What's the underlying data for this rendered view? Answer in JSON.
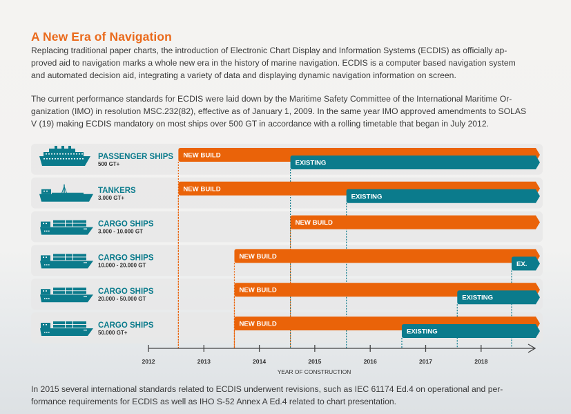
{
  "header": {
    "title": "A New Era of Navigation"
  },
  "intro": {
    "paragraph1": [
      "Replacing traditional paper charts, the introduction of Electronic Chart Display and Information Systems (ECDIS) as officially ap-",
      "proved aid to navigation marks a whole new era in the history of marine navigation. ECDIS is a computer based navigation system",
      "and automated decision aid, integrating a variety of data and displaying dynamic navigation information on screen."
    ],
    "paragraph2": [
      "The current performance standards for ECDIS were laid down by the Maritime Safety Committee of the International Maritime Or-",
      "ganization (IMO) in resolution MSC.232(82), effective as of January 1, 2009. In the same year IMO approved amendments to SOLAS",
      "V (19) making ECDIS mandatory on most ships over 500 GT in accordance with a rolling timetable that began in July 2012."
    ]
  },
  "footer": {
    "paragraph": [
      "In 2015 several international standards related to ECDIS underwent revisions, such as IEC 61174 Ed.4 on operational and per-",
      "formance requirements for ECDIS as well as IHO S-52 Annex A Ed.4 related to chart presentation."
    ]
  },
  "colors": {
    "new_build": "#ea6309",
    "existing": "#0b7b8c",
    "title": "#ea6a1c",
    "row_bg": "#e7e8e8",
    "axis": "#444444"
  },
  "chart_data": {
    "type": "gantt-timeline",
    "title": "",
    "xlabel": "YEAR OF CONSTRUCTION",
    "ylabel": "",
    "x_ticks": [
      2012,
      2013,
      2014,
      2015,
      2016,
      2017,
      2018
    ],
    "xlim": [
      2012,
      2019
    ],
    "legend": [
      "NEW BUILD",
      "EXISTING"
    ],
    "rows": [
      {
        "icon": "passenger-ship-icon",
        "name": "PASSENGER SHIPS",
        "size": "500 GT+",
        "new_build": {
          "label": "NEW BUILD",
          "start": 2012.54
        },
        "existing": {
          "label": "EXISTING",
          "start": 2014.56
        }
      },
      {
        "icon": "tanker-icon",
        "name": "TANKERS",
        "size": "3.000 GT+",
        "new_build": {
          "label": "NEW BUILD",
          "start": 2012.54
        },
        "existing": {
          "label": "EXISTING",
          "start": 2015.57
        }
      },
      {
        "icon": "cargo-ship-icon",
        "name": "CARGO SHIPS",
        "size": "3.000 - 10.000 GT",
        "new_build": {
          "label": "NEW BUILD",
          "start": 2014.56
        },
        "existing": null
      },
      {
        "icon": "cargo-ship-icon",
        "name": "CARGO SHIPS",
        "size": "10.000 - 20.000 GT",
        "new_build": {
          "label": "NEW BUILD",
          "start": 2013.55
        },
        "existing": {
          "label": "EX.",
          "start": 2018.55
        }
      },
      {
        "icon": "cargo-ship-icon",
        "name": "CARGO SHIPS",
        "size": "20.000 - 50.000 GT",
        "new_build": {
          "label": "NEW BUILD",
          "start": 2013.55
        },
        "existing": {
          "label": "EXISTING",
          "start": 2017.57
        }
      },
      {
        "icon": "cargo-ship-icon",
        "name": "CARGO SHIPS",
        "size": "50.000 GT+",
        "new_build": {
          "label": "NEW BUILD",
          "start": 2013.55
        },
        "existing": {
          "label": "EXISTING",
          "start": 2016.57
        }
      }
    ]
  }
}
